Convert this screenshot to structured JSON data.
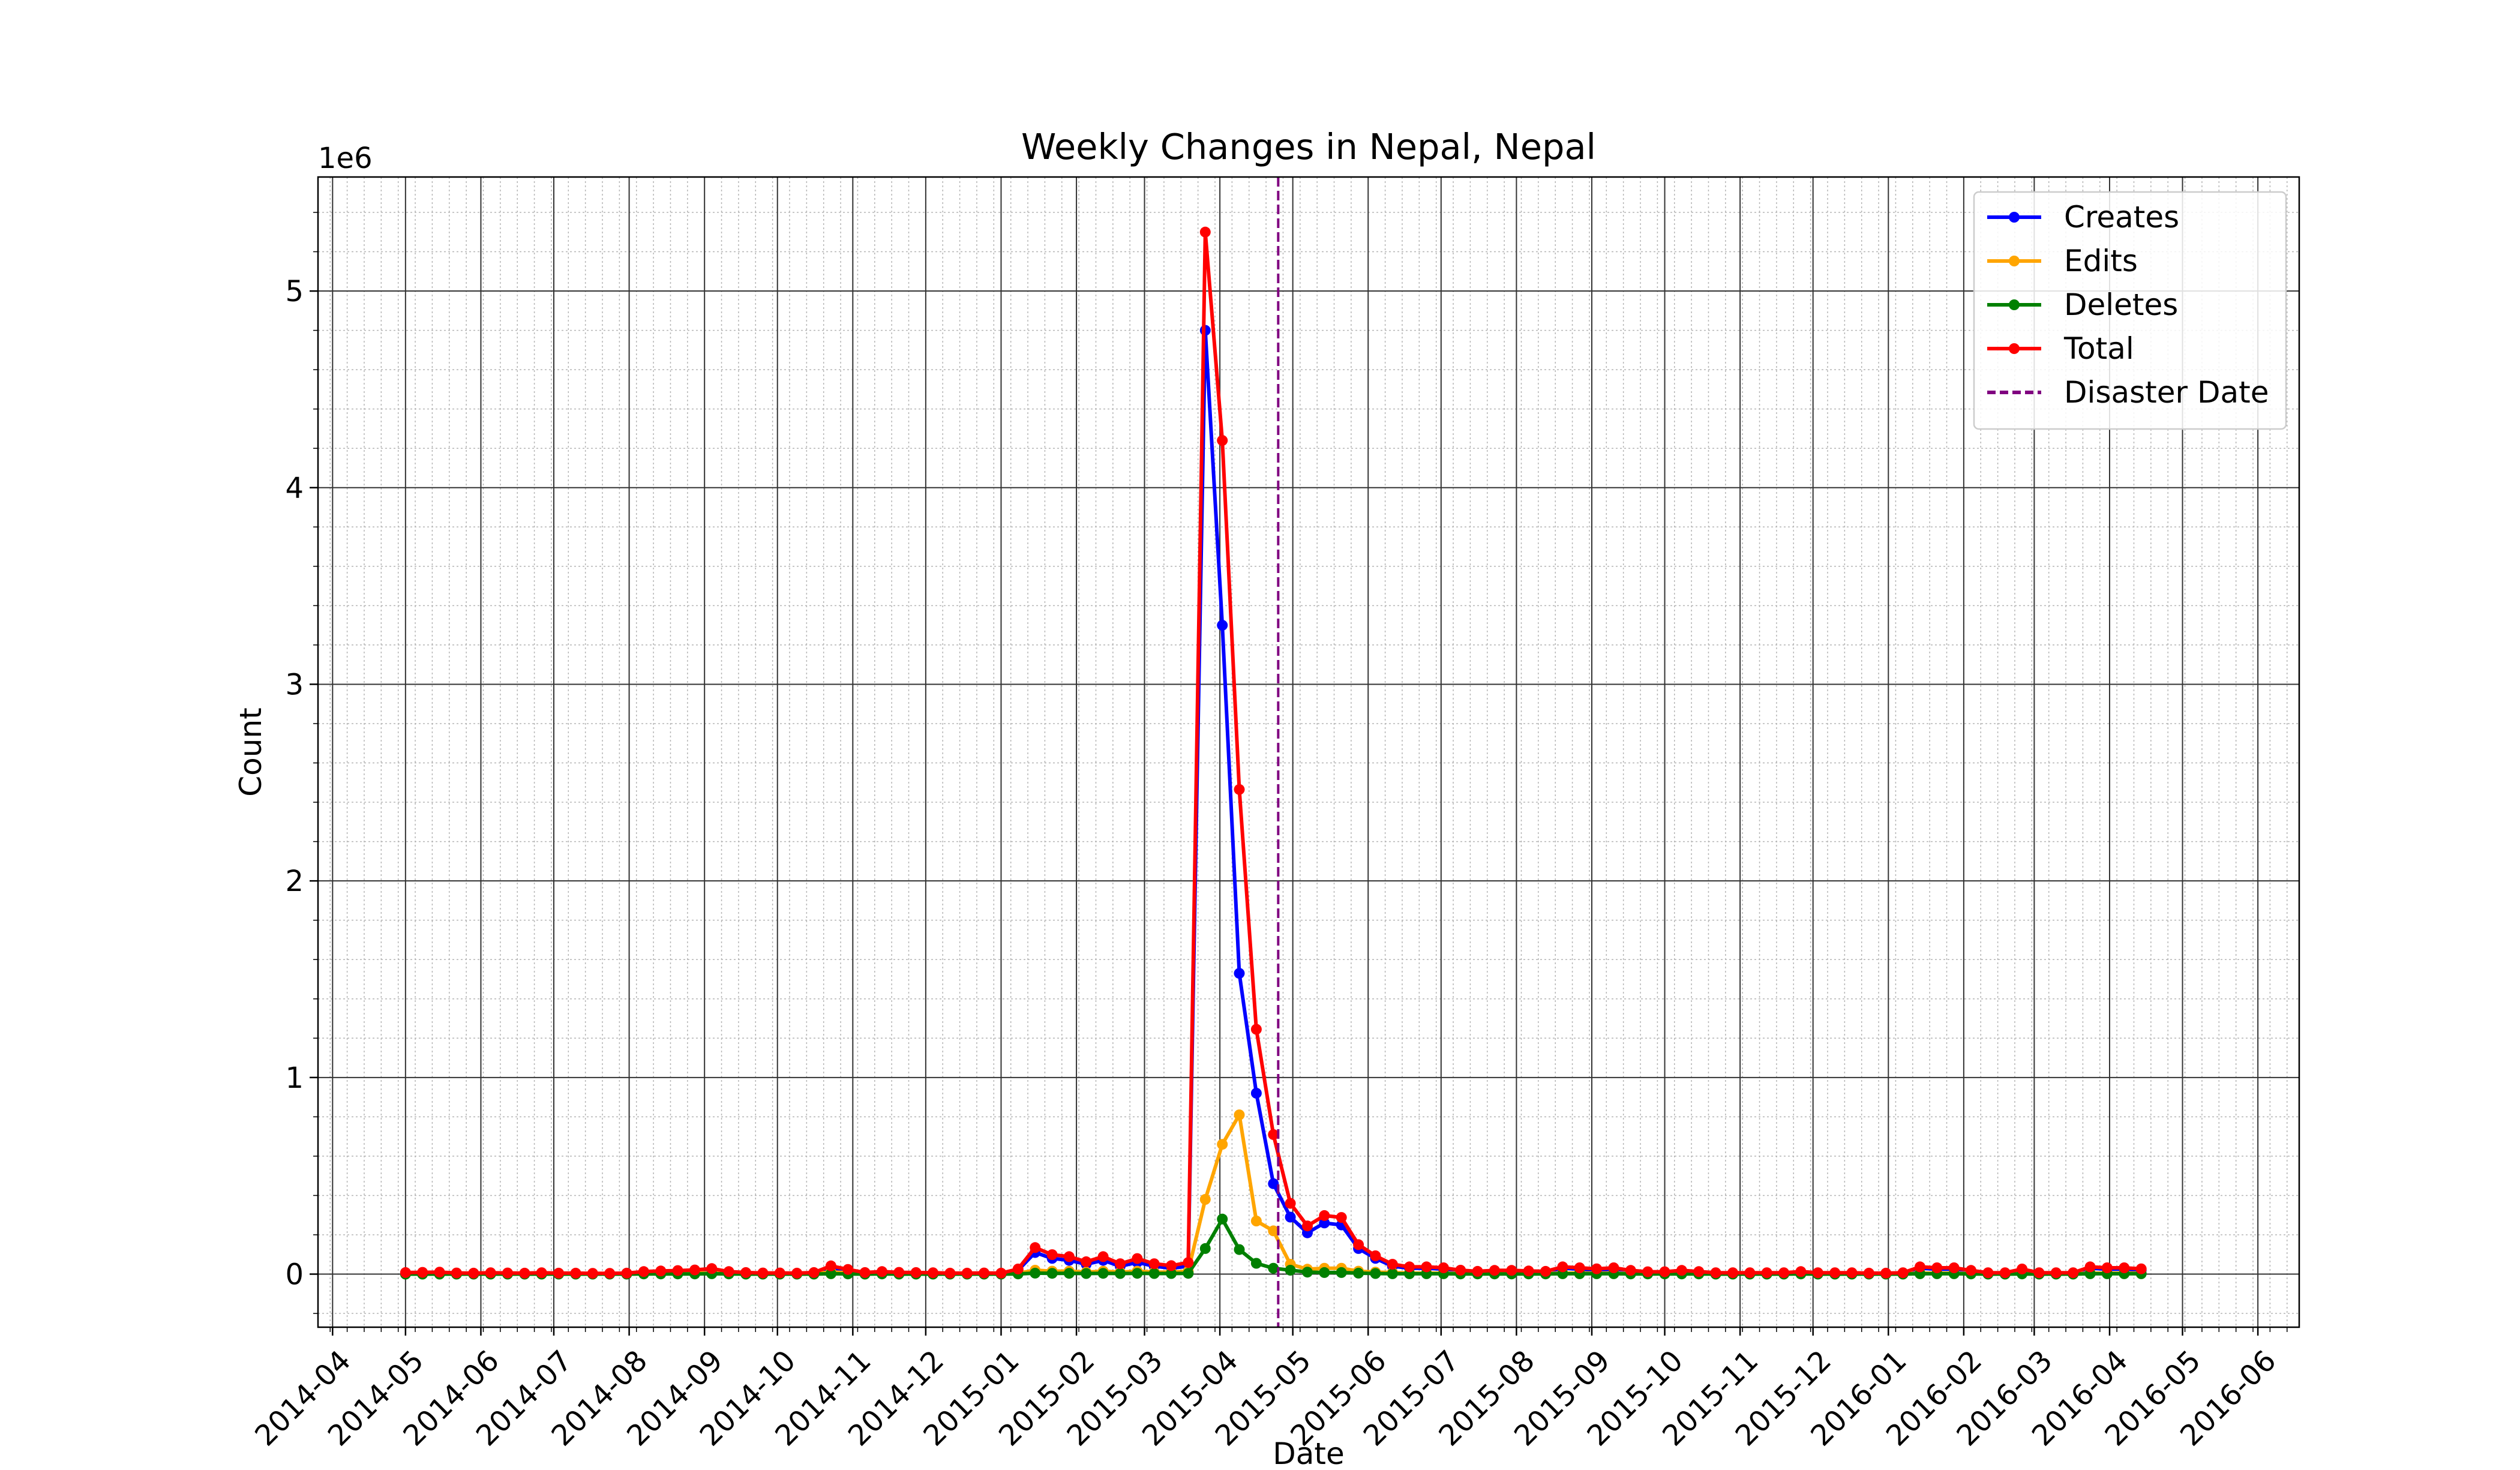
{
  "chart_data": {
    "type": "line",
    "title": "Weekly Changes in Nepal, Nepal",
    "xlabel": "Date",
    "ylabel": "Count",
    "y_offset_label": "1e6",
    "x_tick_labels": [
      "2014-04",
      "2014-05",
      "2014-06",
      "2014-07",
      "2014-08",
      "2014-09",
      "2014-10",
      "2014-11",
      "2014-12",
      "2015-01",
      "2015-02",
      "2015-03",
      "2015-04",
      "2015-05",
      "2015-06",
      "2015-07",
      "2015-08",
      "2015-09",
      "2015-10",
      "2015-11",
      "2015-12",
      "2016-01",
      "2016-02",
      "2016-03",
      "2016-04",
      "2016-05",
      "2016-06"
    ],
    "y_tick_labels": [
      "0",
      "1",
      "2",
      "3",
      "4",
      "5"
    ],
    "ylim": [
      -270000,
      5580000
    ],
    "xlim": [
      "2014-03-26",
      "2016-06-18"
    ],
    "grid": {
      "major": true,
      "minor": true
    },
    "legend_position": "top-right",
    "first_week": "2014-05-01",
    "disaster_date": "2015-04-25",
    "series": [
      {
        "name": "Creates",
        "color": "#0000ff",
        "values": [
          5000,
          6000,
          7000,
          4000,
          3000,
          5000,
          4000,
          3000,
          5000,
          3000,
          3000,
          2000,
          2000,
          3000,
          8000,
          10000,
          12000,
          14000,
          20000,
          8000,
          5000,
          4000,
          4000,
          3000,
          5000,
          30000,
          15000,
          5000,
          8000,
          6000,
          5000,
          4000,
          3000,
          3000,
          4000,
          3000,
          20000,
          110000,
          80000,
          70000,
          50000,
          70000,
          40000,
          60000,
          40000,
          30000,
          40000,
          4800000,
          3300000,
          1530000,
          920000,
          460000,
          290000,
          210000,
          260000,
          250000,
          130000,
          80000,
          40000,
          30000,
          30000,
          25000,
          15000,
          10000,
          15000,
          15000,
          12000,
          10000,
          30000,
          25000,
          20000,
          25000,
          15000,
          8000,
          8000,
          15000,
          10000,
          5000,
          5000,
          5000,
          5000,
          5000,
          10000,
          5000,
          5000,
          5000,
          3000,
          3000,
          5000,
          30000,
          25000,
          25000,
          15000,
          5000,
          5000,
          20000,
          5000,
          5000,
          5000,
          30000,
          25000,
          25000,
          20000
        ]
      },
      {
        "name": "Edits",
        "color": "#ffa500",
        "values": [
          3000,
          3000,
          3000,
          2000,
          2000,
          2000,
          2000,
          2000,
          2000,
          2000,
          2000,
          2000,
          2000,
          2000,
          4000,
          5000,
          5000,
          6000,
          6000,
          4000,
          3000,
          2000,
          2000,
          2000,
          3000,
          10000,
          8000,
          3000,
          4000,
          3000,
          3000,
          3000,
          2000,
          2000,
          2000,
          2000,
          5000,
          20000,
          15000,
          15000,
          10000,
          15000,
          10000,
          15000,
          10000,
          10000,
          15000,
          380000,
          660000,
          810000,
          270000,
          220000,
          50000,
          25000,
          30000,
          30000,
          15000,
          10000,
          8000,
          5000,
          5000,
          5000,
          4000,
          3000,
          3000,
          3000,
          3000,
          3000,
          5000,
          5000,
          5000,
          5000,
          3000,
          3000,
          3000,
          3000,
          2000,
          2000,
          2000,
          2000,
          2000,
          2000,
          2000,
          2000,
          2000,
          2000,
          2000,
          2000,
          2000,
          5000,
          5000,
          5000,
          3000,
          2000,
          2000,
          5000,
          2000,
          2000,
          2000,
          5000,
          5000,
          5000,
          5000
        ]
      },
      {
        "name": "Deletes",
        "color": "#008000",
        "values": [
          0,
          0,
          0,
          0,
          0,
          0,
          0,
          0,
          0,
          0,
          0,
          0,
          0,
          0,
          1000,
          1000,
          1000,
          1000,
          2000,
          1000,
          0,
          0,
          0,
          0,
          0,
          2000,
          1000,
          0,
          1000,
          0,
          0,
          0,
          0,
          0,
          0,
          0,
          1000,
          5000,
          4000,
          4000,
          3000,
          4000,
          3000,
          4000,
          3000,
          3000,
          4000,
          130000,
          280000,
          125000,
          55000,
          30000,
          20000,
          10000,
          8000,
          8000,
          5000,
          3000,
          2000,
          2000,
          2000,
          2000,
          1000,
          1000,
          1000,
          1000,
          1000,
          1000,
          2000,
          2000,
          2000,
          2000,
          1000,
          1000,
          1000,
          1000,
          1000,
          0,
          0,
          0,
          0,
          0,
          1000,
          0,
          0,
          0,
          0,
          0,
          0,
          2000,
          2000,
          2000,
          1000,
          0,
          0,
          1000,
          0,
          0,
          0,
          2000,
          2000,
          2000,
          2000
        ]
      },
      {
        "name": "Total",
        "color": "#ff0000",
        "values": [
          8000,
          9000,
          10000,
          6000,
          5000,
          7000,
          6000,
          5000,
          7000,
          5000,
          5000,
          4000,
          4000,
          5000,
          13000,
          16000,
          18000,
          21000,
          28000,
          13000,
          8000,
          6000,
          6000,
          5000,
          8000,
          42000,
          24000,
          8000,
          13000,
          9000,
          8000,
          7000,
          5000,
          5000,
          6000,
          5000,
          26000,
          135000,
          99000,
          89000,
          63000,
          89000,
          53000,
          79000,
          53000,
          43000,
          59000,
          5300000,
          4240000,
          2465000,
          1245000,
          710000,
          360000,
          245000,
          298000,
          288000,
          150000,
          93000,
          50000,
          37000,
          37000,
          32000,
          20000,
          14000,
          19000,
          19000,
          16000,
          14000,
          37000,
          32000,
          27000,
          32000,
          19000,
          12000,
          12000,
          19000,
          13000,
          7000,
          7000,
          7000,
          7000,
          7000,
          13000,
          7000,
          7000,
          7000,
          5000,
          5000,
          7000,
          37000,
          32000,
          32000,
          19000,
          7000,
          7000,
          26000,
          7000,
          7000,
          7000,
          37000,
          32000,
          32000,
          27000
        ]
      }
    ]
  }
}
